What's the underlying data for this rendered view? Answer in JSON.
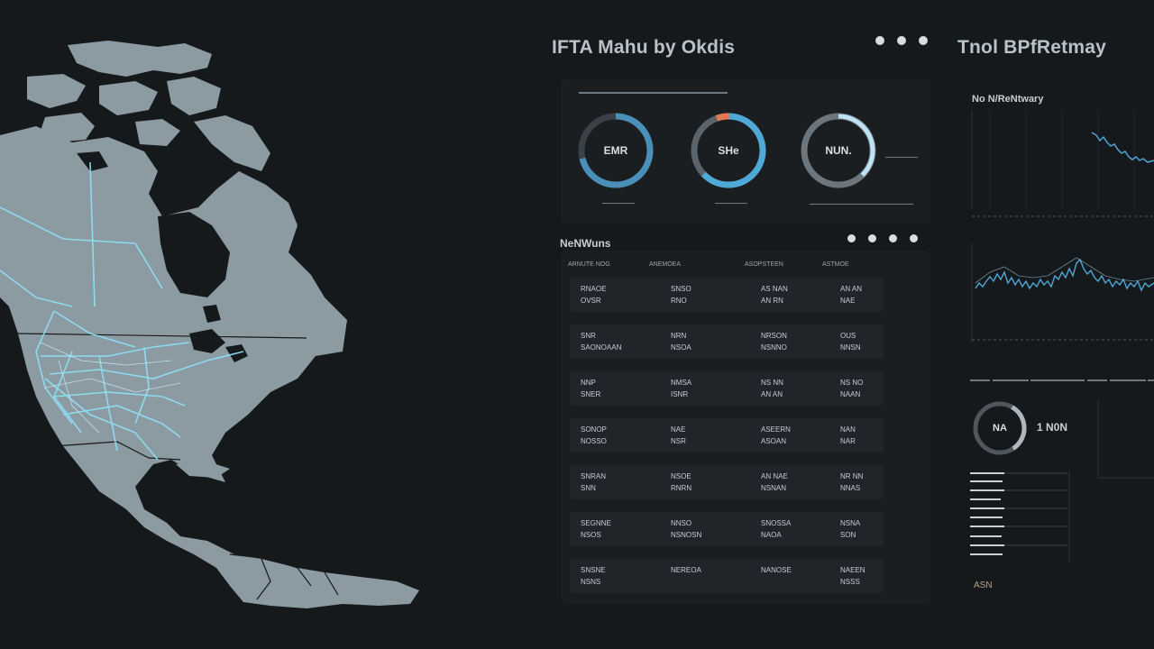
{
  "mid_panel": {
    "title": "IFTA Mahu by Okdis"
  },
  "right_panel": {
    "title": "Tnol BPfRetmay"
  },
  "gauges": [
    {
      "label": "EMR",
      "accent": "#4a8fb8"
    },
    {
      "label": "SHe",
      "accent": "#4fa9d6"
    },
    {
      "label": "NUN.",
      "accent": "#bfe3f5"
    }
  ],
  "table": {
    "title": "NeNWuns",
    "headers": [
      "ARNUTE NOG",
      "ANEMOEA",
      "ASOPSTEEN",
      "ASTMOE"
    ],
    "rows": [
      [
        "RNAOE|OVSR",
        "SNSO|RNO",
        "AS NAN|AN RN",
        "AN AN|NAE"
      ],
      [
        "SNR|SAONOAAN",
        "NRN|NSOA",
        "NRSON|NSNNO",
        "OUS|NNSN"
      ],
      [
        "NNP|SNER",
        "NMSA|ISNR",
        "NS NN|AN AN",
        "NS NO|NAAN"
      ],
      [
        "SONOP|NOSSO",
        "NAE|NSR",
        "ASEERN|ASOAN",
        "NAN|NAR"
      ],
      [
        "SNRAN|SNN",
        "NSOE|RNRN",
        "AN NAE|NSNAN",
        "NR NN|NNAS"
      ],
      [
        "SEGNNE|NSOS",
        "NNSO|NSNOSN",
        "SNOSSA|NAOA",
        "NSNA|SON"
      ],
      [
        "SNSNE|NSNS",
        "NEREOA",
        "NANOSE",
        "NAEEN|NSSS"
      ]
    ]
  },
  "chart1": {
    "title": "No N/ReNtwary",
    "color": "#4ea7d6"
  },
  "bottom_card": {
    "gauge_label": "NA",
    "value": "1 N0N",
    "footer": "ASN"
  },
  "map": {
    "land_color": "#8c9aa2",
    "route_color": "#8fe3f7"
  }
}
